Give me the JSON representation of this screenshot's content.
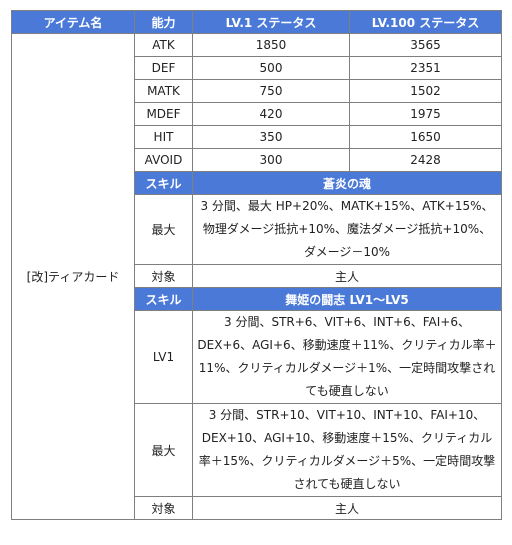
{
  "header": {
    "item_name": "アイテム名",
    "ability": "能力",
    "lv1_status": "LV.1 ステータス",
    "lv100_status": "LV.100 ステータス"
  },
  "item": {
    "name": "[改]ティアカード"
  },
  "stats": [
    {
      "label": "ATK",
      "lv1": "1850",
      "lv100": "3565"
    },
    {
      "label": "DEF",
      "lv1": "500",
      "lv100": "2351"
    },
    {
      "label": "MATK",
      "lv1": "750",
      "lv100": "1502"
    },
    {
      "label": "MDEF",
      "lv1": "420",
      "lv100": "1975"
    },
    {
      "label": "HIT",
      "lv1": "350",
      "lv100": "1650"
    },
    {
      "label": "AVOID",
      "lv1": "300",
      "lv100": "2428"
    }
  ],
  "skill1": {
    "label": "スキル",
    "name": "蒼炎の魂",
    "max_label": "最大",
    "max_text": "3 分間、最大 HP+20%、MATK+15%、ATK+15%、物理ダメージ抵抗+10%、魔法ダメージ抵抗+10%、ダメージ－10%",
    "target_label": "対象",
    "target_value": "主人"
  },
  "skill2": {
    "label": "スキル",
    "name": "舞姫の闘志 LV1～LV5",
    "lv1_label": "LV1",
    "lv1_text": "3 分間、STR+6、VIT+6、INT+6、FAI+6、DEX+6、AGI+6、移動速度＋11%、クリティカル率＋11%、クリティカルダメージ＋1%、一定時間攻撃されても硬直しない",
    "max_label": "最大",
    "max_text": "3 分間、STR+10、VIT+10、INT+10、FAI+10、DEX+10、AGI+10、移動速度＋15%、クリティカル率＋15%、クリティカルダメージ＋5%、一定時間攻撃されても硬直しない",
    "target_label": "対象",
    "target_value": "主人"
  },
  "colors": {
    "header_bg": "#4a79d8",
    "border": "#7f7f7f"
  }
}
